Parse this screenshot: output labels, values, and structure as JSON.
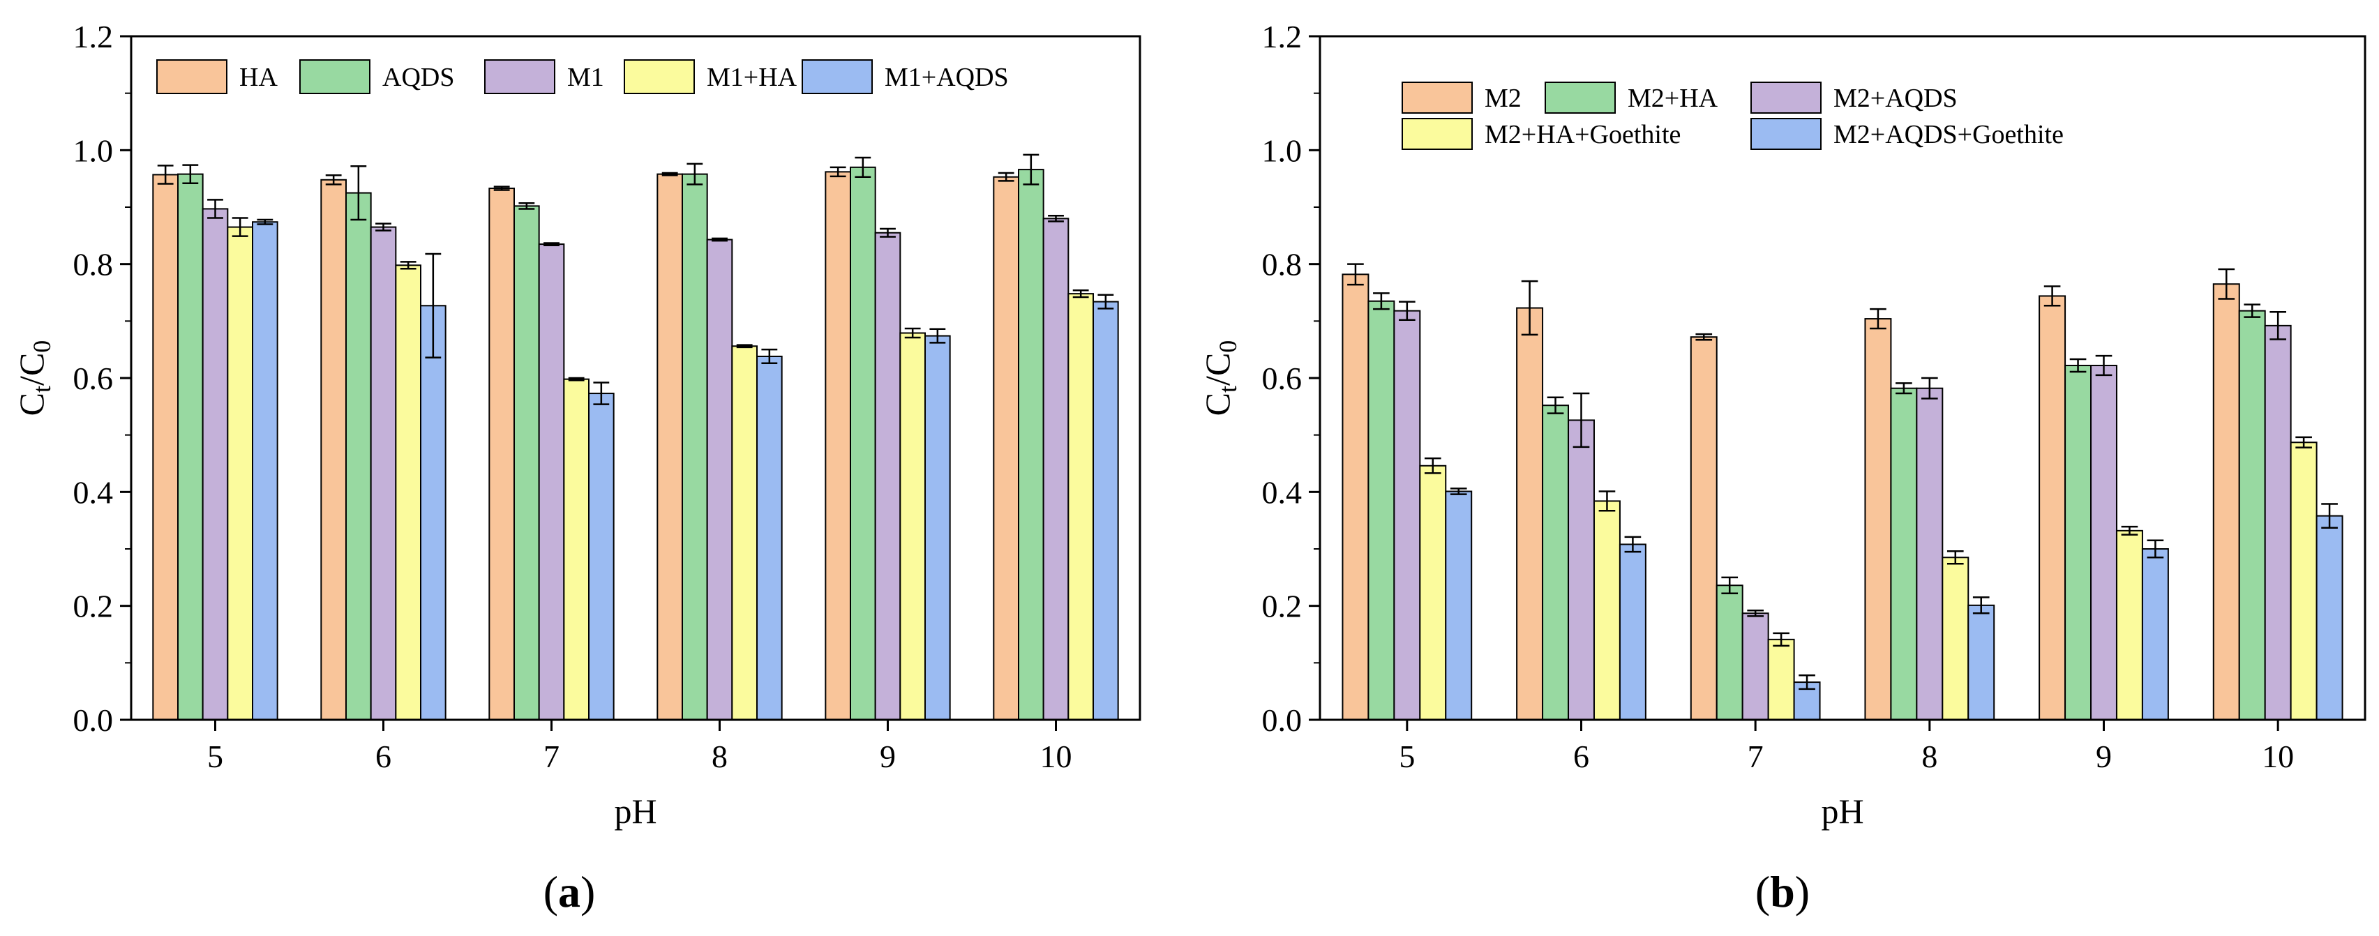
{
  "colors": {
    "peach": "#F9C59A",
    "green": "#98D9A1",
    "lavender": "#C4B1D9",
    "yellow": "#FBFB9D",
    "blue": "#9BBBF2"
  },
  "chart_data": [
    {
      "id": "a",
      "panel_label_open": "(",
      "panel_label_letter": "a",
      "panel_label_close": ")",
      "type": "bar",
      "xlabel": "pH",
      "ylabel_main": "C",
      "ylabel_sub1": "t",
      "ylabel_slash": "/C",
      "ylabel_sub2": "0",
      "ylim": [
        0,
        1.2
      ],
      "yticks": [
        "0.0",
        "0.2",
        "0.4",
        "0.6",
        "0.8",
        "1.0",
        "1.2"
      ],
      "categories": [
        "5",
        "6",
        "7",
        "8",
        "9",
        "10"
      ],
      "legend_placement": "top",
      "series": [
        {
          "name": "HA",
          "color": "#F9C59A",
          "values": [
            0.957,
            0.948,
            0.933,
            0.958,
            0.962,
            0.953
          ],
          "errors": [
            0.016,
            0.008,
            0.003,
            0.002,
            0.008,
            0.007
          ]
        },
        {
          "name": "AQDS",
          "color": "#98D9A1",
          "values": [
            0.958,
            0.925,
            0.902,
            0.958,
            0.97,
            0.966
          ],
          "errors": [
            0.016,
            0.047,
            0.005,
            0.018,
            0.017,
            0.026
          ]
        },
        {
          "name": "M1",
          "color": "#C4B1D9",
          "values": [
            0.897,
            0.865,
            0.835,
            0.843,
            0.855,
            0.88
          ],
          "errors": [
            0.016,
            0.006,
            0.002,
            0.002,
            0.007,
            0.005
          ]
        },
        {
          "name": "M1+HA",
          "color": "#FBFB9D",
          "values": [
            0.865,
            0.798,
            0.598,
            0.656,
            0.679,
            0.748
          ],
          "errors": [
            0.016,
            0.006,
            0.002,
            0.002,
            0.008,
            0.006
          ]
        },
        {
          "name": "M1+AQDS",
          "color": "#9BBBF2",
          "values": [
            0.874,
            0.727,
            0.573,
            0.638,
            0.674,
            0.734
          ],
          "errors": [
            0.004,
            0.091,
            0.019,
            0.012,
            0.012,
            0.012
          ]
        }
      ]
    },
    {
      "id": "b",
      "panel_label_open": "(",
      "panel_label_letter": "b",
      "panel_label_close": ")",
      "type": "bar",
      "xlabel": "pH",
      "ylabel_main": "C",
      "ylabel_sub1": "t",
      "ylabel_slash": "/C",
      "ylabel_sub2": "0",
      "ylim": [
        0,
        1.2
      ],
      "yticks": [
        "0.0",
        "0.2",
        "0.4",
        "0.6",
        "0.8",
        "1.0",
        "1.2"
      ],
      "categories": [
        "5",
        "6",
        "7",
        "8",
        "9",
        "10"
      ],
      "legend_placement": "top",
      "series": [
        {
          "name": "M2",
          "color": "#F9C59A",
          "values": [
            0.782,
            0.723,
            0.672,
            0.704,
            0.744,
            0.765
          ],
          "errors": [
            0.018,
            0.047,
            0.005,
            0.017,
            0.017,
            0.026
          ]
        },
        {
          "name": "M2+HA",
          "color": "#98D9A1",
          "values": [
            0.735,
            0.552,
            0.236,
            0.582,
            0.622,
            0.718
          ],
          "errors": [
            0.014,
            0.014,
            0.014,
            0.009,
            0.011,
            0.011
          ]
        },
        {
          "name": "M2+AQDS",
          "color": "#C4B1D9",
          "values": [
            0.718,
            0.526,
            0.187,
            0.582,
            0.622,
            0.692
          ],
          "errors": [
            0.016,
            0.047,
            0.005,
            0.018,
            0.017,
            0.024
          ]
        },
        {
          "name": "M2+HA+Goethite",
          "color": "#FBFB9D",
          "values": [
            0.446,
            0.384,
            0.141,
            0.285,
            0.332,
            0.487
          ],
          "errors": [
            0.013,
            0.017,
            0.011,
            0.011,
            0.007,
            0.009
          ]
        },
        {
          "name": "M2+AQDS+Goethite",
          "color": "#9BBBF2",
          "values": [
            0.401,
            0.308,
            0.066,
            0.201,
            0.3,
            0.358
          ],
          "errors": [
            0.005,
            0.013,
            0.012,
            0.014,
            0.015,
            0.021
          ]
        }
      ]
    }
  ]
}
